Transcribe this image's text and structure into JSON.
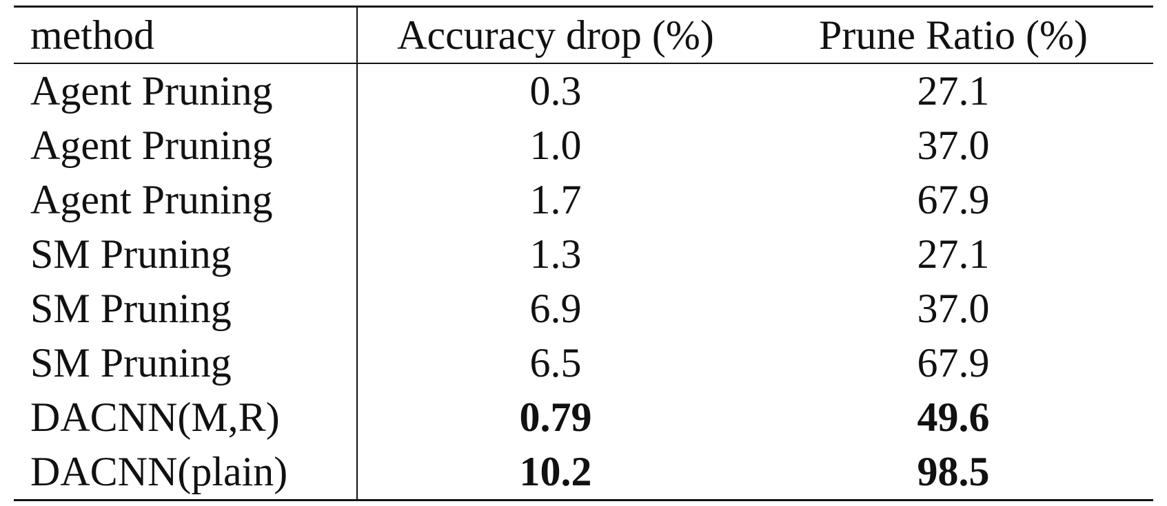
{
  "table": {
    "headers": [
      "method",
      "Accuracy drop (%)",
      "Prune Ratio (%)"
    ],
    "rows": [
      {
        "method": "Agent Pruning",
        "accuracy_drop": "0.3",
        "prune_ratio": "27.1",
        "bold": false
      },
      {
        "method": "Agent Pruning",
        "accuracy_drop": "1.0",
        "prune_ratio": "37.0",
        "bold": false
      },
      {
        "method": "Agent Pruning",
        "accuracy_drop": "1.7",
        "prune_ratio": "67.9",
        "bold": false
      },
      {
        "method": "SM Pruning",
        "accuracy_drop": "1.3",
        "prune_ratio": "27.1",
        "bold": false
      },
      {
        "method": "SM Pruning",
        "accuracy_drop": "6.9",
        "prune_ratio": "37.0",
        "bold": false
      },
      {
        "method": "SM Pruning",
        "accuracy_drop": "6.5",
        "prune_ratio": "67.9",
        "bold": false
      },
      {
        "method": "DACNN(M,R)",
        "accuracy_drop": "0.79",
        "prune_ratio": "49.6",
        "bold": true
      },
      {
        "method": "DACNN(plain)",
        "accuracy_drop": "10.2",
        "prune_ratio": "98.5",
        "bold": true
      }
    ]
  }
}
